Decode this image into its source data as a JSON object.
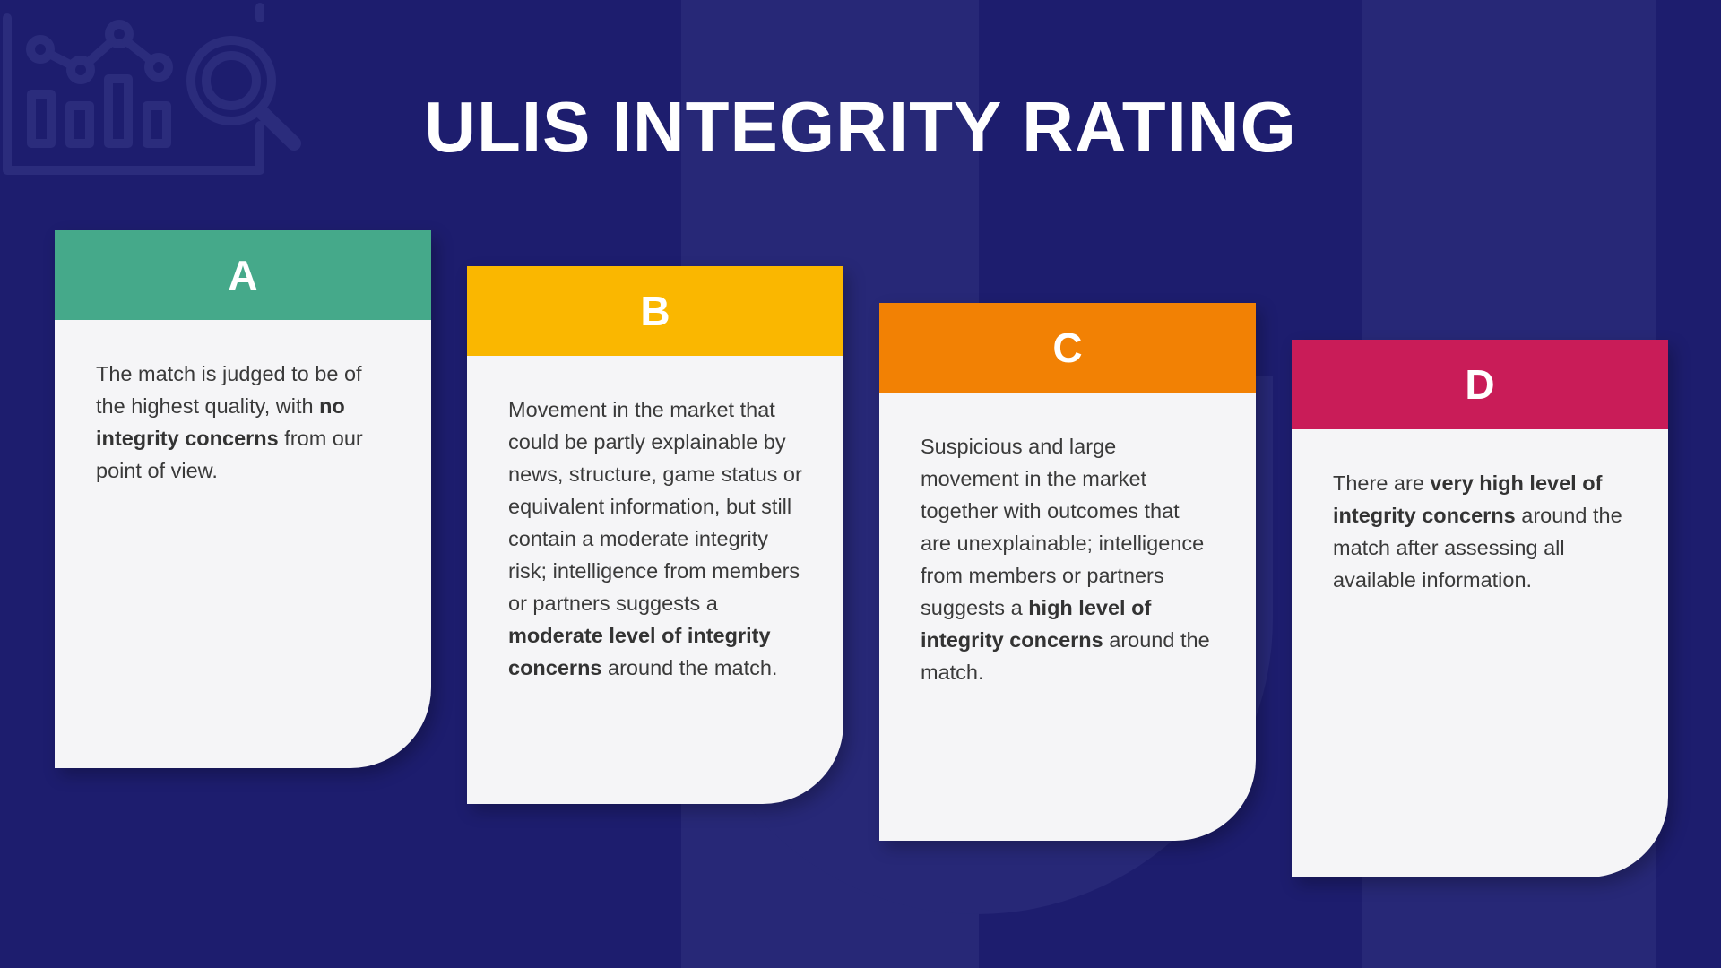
{
  "title": "ULIS INTEGRITY RATING",
  "colors": {
    "background": "#1d1d6e",
    "card_a": "#45a98a",
    "card_b": "#fab700",
    "card_c": "#f28104",
    "card_d": "#c91c58"
  },
  "cards": [
    {
      "grade": "A",
      "segments": [
        {
          "text": "The match is judged to be of the highest quality, with ",
          "bold": false
        },
        {
          "text": "no integrity concerns",
          "bold": true
        },
        {
          "text": " from our point of view.",
          "bold": false
        }
      ]
    },
    {
      "grade": "B",
      "segments": [
        {
          "text": "Movement in the market that could be partly explainable by news, structure, game status or equivalent information, but still contain a moderate integrity risk; intelligence from members or partners suggests a ",
          "bold": false
        },
        {
          "text": "moderate level of integrity concerns",
          "bold": true
        },
        {
          "text": " around the match.",
          "bold": false
        }
      ]
    },
    {
      "grade": "C",
      "segments": [
        {
          "text": "Suspicious and large movement in the market together with outcomes that are unexplainable; intelligence from members or partners suggests a ",
          "bold": false
        },
        {
          "text": "high level of integrity concerns",
          "bold": true
        },
        {
          "text": " around the match.",
          "bold": false
        }
      ]
    },
    {
      "grade": "D",
      "segments": [
        {
          "text": "There are ",
          "bold": false
        },
        {
          "text": "very high level of integrity concerns",
          "bold": true
        },
        {
          "text": " around the match after assessing all available information.",
          "bold": false
        }
      ]
    }
  ],
  "decorations": {
    "corner_icon": "analytics-chart-magnifier-icon"
  }
}
